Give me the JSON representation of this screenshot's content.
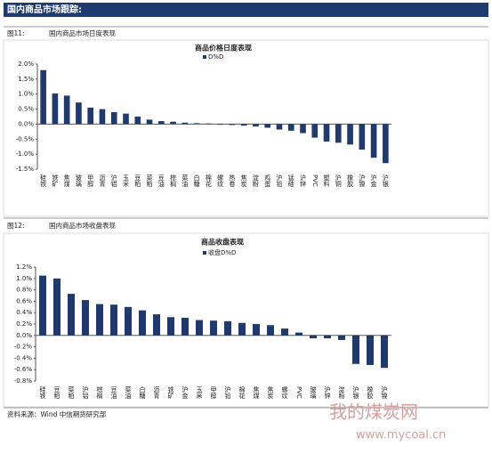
{
  "header": {
    "title": "国内商品市场跟踪:"
  },
  "figures": [
    {
      "label": "图11:",
      "caption": "国内商品市场日度表现"
    },
    {
      "label": "图12:",
      "caption": "国内商品市场收盘表现"
    }
  ],
  "source": "资料来源：Wind  中信期货研究部",
  "watermark": {
    "name": "我的煤炭网",
    "url": "www.mycoal.cn"
  },
  "chart_data": [
    {
      "type": "bar",
      "title": "商品价格日度表现",
      "legend": "D%D",
      "color": "#1f3a6e",
      "categories": [
        "硅铁",
        "铁矿",
        "焦煤",
        "玻璃",
        "甲醇",
        "沥青",
        "沪铝",
        "玉米",
        "豆粕",
        "菜粕",
        "豆油",
        "棕榈",
        "菜油",
        "白糖",
        "棉花",
        "螺纹",
        "热卷",
        "焦炭",
        "淀粉",
        "鸡蛋",
        "沪铅",
        "锰硅",
        "沪锌",
        "PVC",
        "塑料",
        "沪铜",
        "橡胶",
        "沪镍",
        "沪金",
        "沪银"
      ],
      "values": [
        1.8,
        1.02,
        0.95,
        0.72,
        0.55,
        0.5,
        0.4,
        0.35,
        0.25,
        0.15,
        0.1,
        0.08,
        0.05,
        0.03,
        0.02,
        -0.02,
        -0.03,
        -0.05,
        -0.08,
        -0.12,
        -0.18,
        -0.22,
        -0.3,
        -0.45,
        -0.58,
        -0.62,
        -0.68,
        -0.85,
        -1.12,
        -1.3
      ],
      "ylim": [
        -1.5,
        2.0
      ],
      "yticks": [
        {
          "value": -1.5,
          "label": "-1.5%"
        },
        {
          "value": -1.0,
          "label": "-1.0%"
        },
        {
          "value": -0.5,
          "label": "-0.5%"
        },
        {
          "value": 0,
          "label": "0.0%"
        },
        {
          "value": 0.5,
          "label": "0.5%"
        },
        {
          "value": 1.0,
          "label": "1.0%"
        },
        {
          "value": 1.5,
          "label": "1.5%"
        },
        {
          "value": 2.0,
          "label": "2.0%"
        }
      ]
    },
    {
      "type": "bar",
      "title": "商品收盘表现",
      "legend": "收盘D%D",
      "color": "#1f3a6e",
      "categories": [
        "硅铁",
        "豆粕",
        "菜粕",
        "沪铝",
        "棕榈",
        "豆油",
        "菜油",
        "白糖",
        "沥青",
        "铁矿",
        "沪金",
        "玉米",
        "甲醇",
        "沪铅",
        "棉花",
        "焦煤",
        "焦炭",
        "螺纹",
        "PVC",
        "玻璃",
        "沪锌",
        "淀粉",
        "沪银",
        "橡胶",
        "沪镍"
      ],
      "values": [
        1.05,
        1.0,
        0.73,
        0.62,
        0.55,
        0.54,
        0.5,
        0.44,
        0.37,
        0.32,
        0.31,
        0.27,
        0.26,
        0.25,
        0.22,
        0.2,
        0.18,
        0.12,
        0.05,
        -0.05,
        -0.05,
        -0.08,
        -0.5,
        -0.52,
        -0.57
      ],
      "ylim": [
        -0.8,
        1.2
      ],
      "yticks": [
        {
          "value": -0.8,
          "label": "-0.8%"
        },
        {
          "value": -0.6,
          "label": "-0.6%"
        },
        {
          "value": -0.4,
          "label": "-0.4%"
        },
        {
          "value": -0.2,
          "label": "-0.2%"
        },
        {
          "value": 0,
          "label": "0.0%"
        },
        {
          "value": 0.2,
          "label": "0.2%"
        },
        {
          "value": 0.4,
          "label": "0.4%"
        },
        {
          "value": 0.6,
          "label": "0.6%"
        },
        {
          "value": 0.8,
          "label": "0.8%"
        },
        {
          "value": 1.0,
          "label": "1.0%"
        },
        {
          "value": 1.2,
          "label": "1.2%"
        }
      ]
    }
  ]
}
